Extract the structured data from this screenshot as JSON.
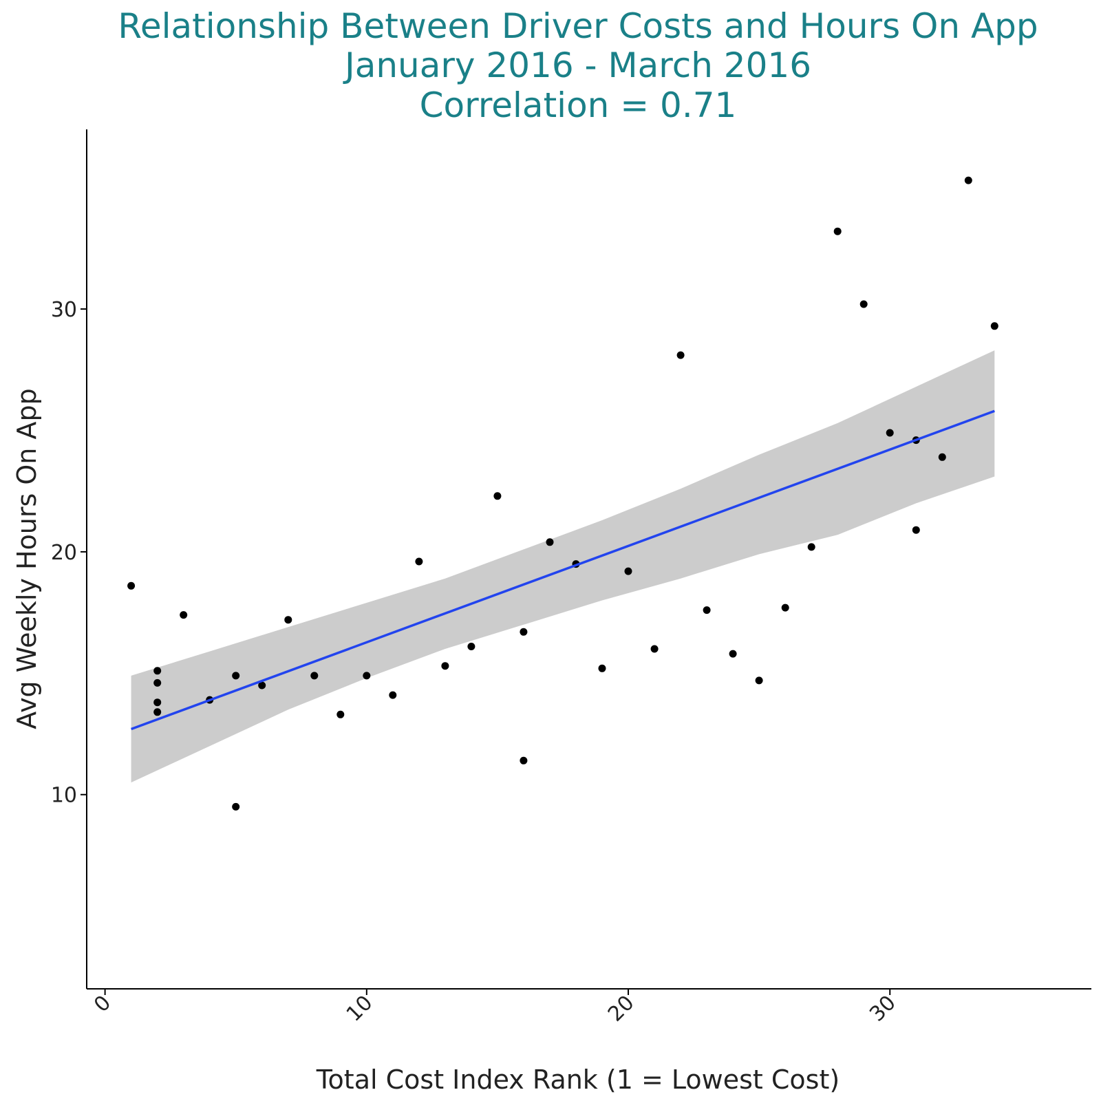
{
  "chart_data": {
    "type": "scatter",
    "title": [
      "Relationship Between Driver Costs and Hours On App",
      "January 2016 - March 2016",
      "Correlation = 0.71"
    ],
    "xlabel": "Total Cost Index Rank (1 = Lowest Cost)",
    "ylabel": "Avg Weekly Hours On App",
    "xlim": [
      -0.7,
      37.7
    ],
    "ylim": [
      2.0,
      37.4
    ],
    "xticks": [
      0,
      10,
      20,
      30
    ],
    "yticks": [
      10,
      20,
      30
    ],
    "grid": false,
    "colors": {
      "title": "#1a8088",
      "point": "#000000",
      "fit_line": "#2244ee",
      "ribbon": "#cccccc",
      "axis": "#000000"
    },
    "points": [
      {
        "x": 1,
        "y": 18.6
      },
      {
        "x": 2,
        "y": 15.1
      },
      {
        "x": 2,
        "y": 14.6
      },
      {
        "x": 2,
        "y": 13.8
      },
      {
        "x": 2,
        "y": 13.4
      },
      {
        "x": 3,
        "y": 17.4
      },
      {
        "x": 4,
        "y": 13.9
      },
      {
        "x": 5,
        "y": 14.9
      },
      {
        "x": 5,
        "y": 9.5
      },
      {
        "x": 6,
        "y": 14.5
      },
      {
        "x": 7,
        "y": 17.2
      },
      {
        "x": 8,
        "y": 14.9
      },
      {
        "x": 9,
        "y": 13.3
      },
      {
        "x": 10,
        "y": 14.9
      },
      {
        "x": 11,
        "y": 14.1
      },
      {
        "x": 12,
        "y": 19.6
      },
      {
        "x": 13,
        "y": 15.3
      },
      {
        "x": 14,
        "y": 16.1
      },
      {
        "x": 15,
        "y": 22.3
      },
      {
        "x": 16,
        "y": 16.7
      },
      {
        "x": 16,
        "y": 11.4
      },
      {
        "x": 17,
        "y": 20.4
      },
      {
        "x": 18,
        "y": 19.5
      },
      {
        "x": 19,
        "y": 15.2
      },
      {
        "x": 20,
        "y": 19.2
      },
      {
        "x": 21,
        "y": 16.0
      },
      {
        "x": 22,
        "y": 28.1
      },
      {
        "x": 23,
        "y": 17.6
      },
      {
        "x": 24,
        "y": 15.8
      },
      {
        "x": 25,
        "y": 14.7
      },
      {
        "x": 26,
        "y": 17.7
      },
      {
        "x": 27,
        "y": 20.2
      },
      {
        "x": 28,
        "y": 33.2
      },
      {
        "x": 29,
        "y": 30.2
      },
      {
        "x": 30,
        "y": 24.9
      },
      {
        "x": 31,
        "y": 24.6
      },
      {
        "x": 31,
        "y": 20.9
      },
      {
        "x": 32,
        "y": 23.9
      },
      {
        "x": 33,
        "y": 35.3
      },
      {
        "x": 34,
        "y": 29.3
      }
    ],
    "fit_line": {
      "x": [
        1,
        34
      ],
      "y": [
        12.7,
        25.8
      ]
    },
    "confidence_band": {
      "x": [
        1,
        4,
        7,
        10,
        13,
        16,
        19,
        22,
        25,
        28,
        31,
        34
      ],
      "upper": [
        14.9,
        15.9,
        16.9,
        17.9,
        18.9,
        20.1,
        21.3,
        22.6,
        24.0,
        25.3,
        26.8,
        28.3
      ],
      "lower": [
        10.5,
        12.0,
        13.5,
        14.8,
        16.0,
        17.0,
        18.0,
        18.9,
        19.9,
        20.7,
        22.0,
        23.1
      ]
    }
  }
}
